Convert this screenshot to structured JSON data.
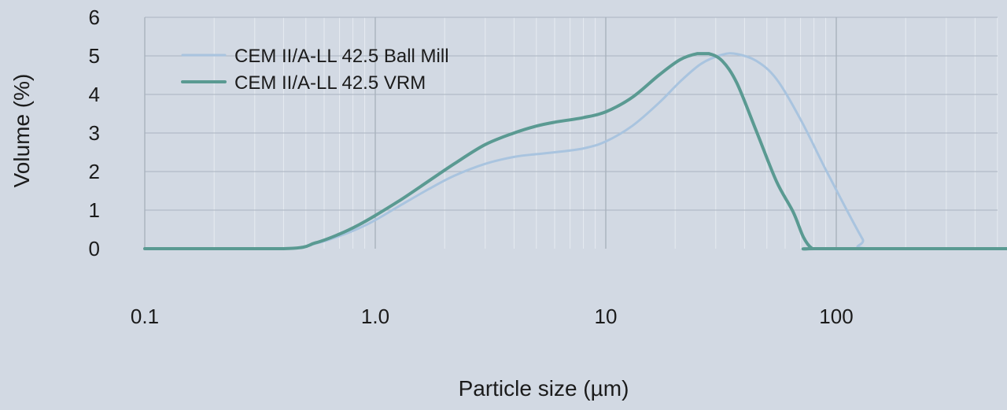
{
  "chart_data": {
    "type": "line",
    "xlabel": "Particle size (µm)",
    "ylabel": "Volume (%)",
    "x_scale": "log",
    "xlim": [
      0.1,
      600
    ],
    "ylim": [
      0,
      6
    ],
    "x_ticks": [
      0.1,
      1,
      10,
      100
    ],
    "x_tick_labels": [
      "0.1",
      "1.0",
      "10",
      "100"
    ],
    "y_ticks": [
      0,
      1,
      2,
      3,
      4,
      5,
      6
    ],
    "y_tick_labels": [
      "0",
      "1",
      "2",
      "3",
      "4",
      "5",
      "6"
    ],
    "grid": true,
    "legend_position": "top-left",
    "background_color": "#d2d9e3",
    "series": [
      {
        "name": "CEM II/A-LL 42.5 Ball Mill",
        "color": "#a9c4df",
        "x": [
          0.1,
          0.4,
          0.55,
          0.7,
          0.85,
          1.0,
          1.3,
          1.7,
          2.2,
          3.0,
          4.0,
          5.0,
          6.0,
          8.0,
          10.0,
          13.0,
          17.0,
          21.0,
          26.0,
          32.0,
          37.0,
          45.0,
          55.0,
          70.0,
          90.0,
          110.0,
          130.0,
          140.0,
          600.0
        ],
        "values": [
          0,
          0,
          0.13,
          0.33,
          0.53,
          0.74,
          1.14,
          1.54,
          1.89,
          2.2,
          2.38,
          2.45,
          2.5,
          2.6,
          2.78,
          3.18,
          3.78,
          4.33,
          4.8,
          5.03,
          5.05,
          4.87,
          4.4,
          3.35,
          2.05,
          1.05,
          0.25,
          0,
          0
        ]
      },
      {
        "name": "CEM II/A-LL 42.5 VRM",
        "color": "#5a9a92",
        "x": [
          0.1,
          0.4,
          0.55,
          0.7,
          0.85,
          1.0,
          1.3,
          1.7,
          2.2,
          3.0,
          4.0,
          5.0,
          6.0,
          8.0,
          10.0,
          13.0,
          17.0,
          21.0,
          25.0,
          28.0,
          32.0,
          37.0,
          45.0,
          55.0,
          65.0,
          72.0,
          78.0,
          85.0,
          600.0
        ],
        "values": [
          0,
          0,
          0.15,
          0.38,
          0.62,
          0.86,
          1.28,
          1.75,
          2.2,
          2.7,
          3.0,
          3.18,
          3.28,
          3.4,
          3.55,
          3.92,
          4.5,
          4.9,
          5.06,
          5.06,
          4.87,
          4.3,
          3.05,
          1.75,
          0.95,
          0.3,
          0.02,
          0,
          0
        ]
      }
    ]
  }
}
